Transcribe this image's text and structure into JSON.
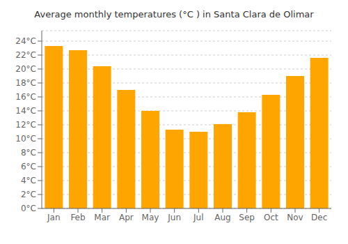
{
  "chart_data": {
    "type": "bar",
    "title": "Average monthly temperatures (°C ) in Santa Clara de Olimar",
    "categories": [
      "Jan",
      "Feb",
      "Mar",
      "Apr",
      "May",
      "Jun",
      "Jul",
      "Aug",
      "Sep",
      "Oct",
      "Nov",
      "Dec"
    ],
    "values": [
      23.3,
      22.7,
      20.4,
      17.0,
      14.0,
      11.3,
      11.0,
      12.1,
      13.8,
      16.3,
      19.0,
      21.6
    ],
    "color": "#FFA500",
    "ylim": [
      0,
      25.5
    ],
    "yticks": [
      {
        "value": 0,
        "label": "0°C"
      },
      {
        "value": 2,
        "label": "2°C"
      },
      {
        "value": 4,
        "label": "4°C"
      },
      {
        "value": 6,
        "label": "6°C"
      },
      {
        "value": 8,
        "label": "8°C"
      },
      {
        "value": 10,
        "label": "10°C"
      },
      {
        "value": 12,
        "label": "12°C"
      },
      {
        "value": 14,
        "label": "14°C"
      },
      {
        "value": 16,
        "label": "16°C"
      },
      {
        "value": 18,
        "label": "18°C"
      },
      {
        "value": 20,
        "label": "20°C"
      },
      {
        "value": 22,
        "label": "22°C"
      },
      {
        "value": 24,
        "label": "24°C"
      }
    ],
    "grid": true
  }
}
